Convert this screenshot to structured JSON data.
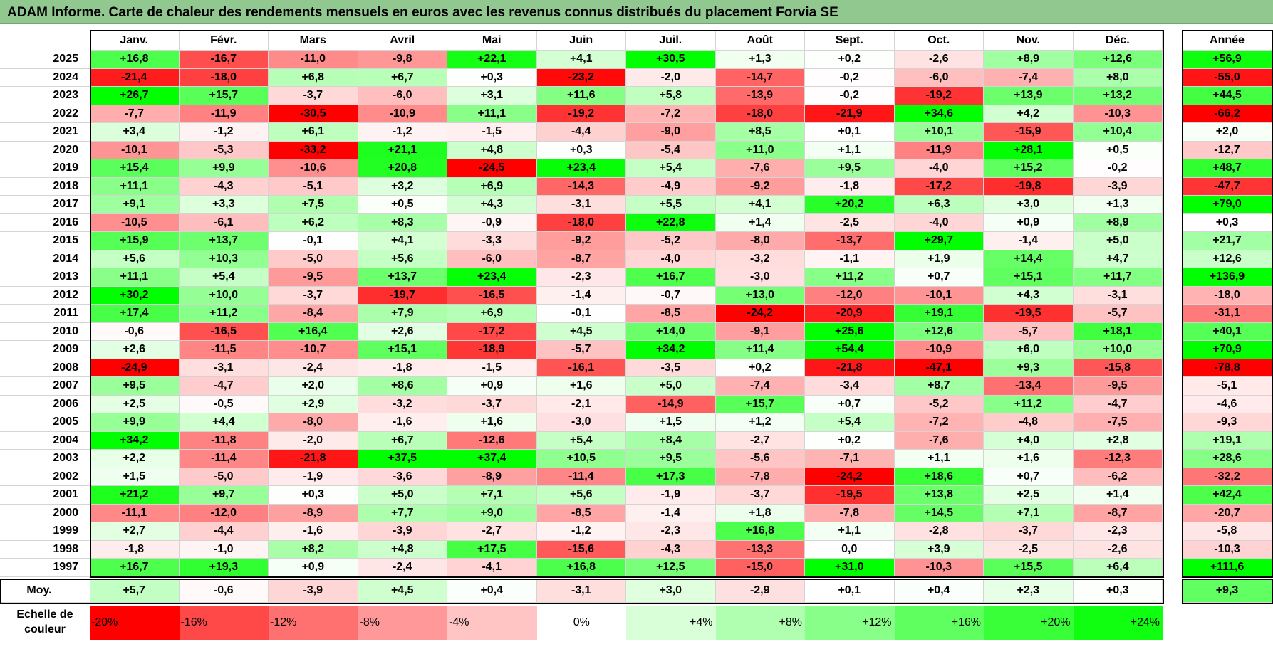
{
  "title": "ADAM Informe. Carte de chaleur des rendements mensuels en euros avec les revenus connus distribués du placement Forvia SE",
  "chart_data": {
    "type": "heatmap",
    "title": "ADAM Informe. Carte de chaleur des rendements mensuels en euros avec les revenus connus distribués du placement Forvia SE",
    "columns": [
      "Janv.",
      "Févr.",
      "Mars",
      "Avril",
      "Mai",
      "Juin",
      "Juil.",
      "Août",
      "Sept.",
      "Oct.",
      "Nov.",
      "Déc."
    ],
    "year_column_label": "Année",
    "rows": [
      {
        "year": "2025",
        "values": [
          "+16,8",
          "-16,7",
          "-11,0",
          "-9,8",
          "+22,1",
          "+4,1",
          "+30,5",
          "+1,3",
          "+0,2",
          "-2,6",
          "+8,9",
          "+12,6"
        ],
        "annual": "+56,9"
      },
      {
        "year": "2024",
        "values": [
          "-21,4",
          "-18,0",
          "+6,8",
          "+6,7",
          "+0,3",
          "-23,2",
          "-2,0",
          "-14,7",
          "-0,2",
          "-6,0",
          "-7,4",
          "+8,0"
        ],
        "annual": "-55,0"
      },
      {
        "year": "2023",
        "values": [
          "+26,7",
          "+15,7",
          "-3,7",
          "-6,0",
          "+3,1",
          "+11,6",
          "+5,8",
          "-13,9",
          "-0,2",
          "-19,2",
          "+13,9",
          "+13,2"
        ],
        "annual": "+44,5"
      },
      {
        "year": "2022",
        "values": [
          "-7,7",
          "-11,9",
          "-30,5",
          "-10,9",
          "+11,1",
          "-19,2",
          "-7,2",
          "-18,0",
          "-21,9",
          "+34,6",
          "+4,2",
          "-10,3"
        ],
        "annual": "-66,2"
      },
      {
        "year": "2021",
        "values": [
          "+3,4",
          "-1,2",
          "+6,1",
          "-1,2",
          "-1,5",
          "-4,4",
          "-9,0",
          "+8,5",
          "+0,1",
          "+10,1",
          "-15,9",
          "+10,4"
        ],
        "annual": "+2,0"
      },
      {
        "year": "2020",
        "values": [
          "-10,1",
          "-5,3",
          "-33,2",
          "+21,1",
          "+4,8",
          "+0,3",
          "-5,4",
          "+11,0",
          "+1,1",
          "-11,9",
          "+28,1",
          "+0,5"
        ],
        "annual": "-12,7"
      },
      {
        "year": "2019",
        "values": [
          "+15,4",
          "+9,9",
          "-10,6",
          "+20,8",
          "-24,5",
          "+23,4",
          "+5,4",
          "-7,6",
          "+9,5",
          "-4,0",
          "+15,2",
          "-0,2"
        ],
        "annual": "+48,7"
      },
      {
        "year": "2018",
        "values": [
          "+11,1",
          "-4,3",
          "-5,1",
          "+3,2",
          "+6,9",
          "-14,3",
          "-4,9",
          "-9,2",
          "-1,8",
          "-17,2",
          "-19,8",
          "-3,9"
        ],
        "annual": "-47,7"
      },
      {
        "year": "2017",
        "values": [
          "+9,1",
          "+3,3",
          "+7,5",
          "+0,5",
          "+4,3",
          "-3,1",
          "+5,5",
          "+4,1",
          "+20,2",
          "+6,3",
          "+3,0",
          "+1,3"
        ],
        "annual": "+79,0"
      },
      {
        "year": "2016",
        "values": [
          "-10,5",
          "-6,1",
          "+6,2",
          "+8,3",
          "-0,9",
          "-18,0",
          "+22,8",
          "+1,4",
          "-2,5",
          "-4,0",
          "+0,9",
          "+8,9"
        ],
        "annual": "+0,3"
      },
      {
        "year": "2015",
        "values": [
          "+15,9",
          "+13,7",
          "-0,1",
          "+4,1",
          "-3,3",
          "-9,2",
          "-5,2",
          "-8,0",
          "-13,7",
          "+29,7",
          "-1,4",
          "+5,0"
        ],
        "annual": "+21,7"
      },
      {
        "year": "2014",
        "values": [
          "+5,6",
          "+10,3",
          "-5,0",
          "+5,6",
          "-6,0",
          "-8,7",
          "-4,0",
          "-3,2",
          "-1,1",
          "+1,9",
          "+14,4",
          "+4,7"
        ],
        "annual": "+12,6"
      },
      {
        "year": "2013",
        "values": [
          "+11,1",
          "+5,4",
          "-9,5",
          "+13,7",
          "+23,4",
          "-2,3",
          "+16,7",
          "-3,0",
          "+11,2",
          "+0,7",
          "+15,1",
          "+11,7"
        ],
        "annual": "+136,9"
      },
      {
        "year": "2012",
        "values": [
          "+30,2",
          "+10,0",
          "-3,7",
          "-19,7",
          "-16,5",
          "-1,4",
          "-0,7",
          "+13,0",
          "-12,0",
          "-10,1",
          "+4,3",
          "-3,1"
        ],
        "annual": "-18,0"
      },
      {
        "year": "2011",
        "values": [
          "+17,4",
          "+11,2",
          "-8,4",
          "+7,9",
          "+6,9",
          "-0,1",
          "-8,5",
          "-24,2",
          "-20,9",
          "+19,1",
          "-19,5",
          "-5,7"
        ],
        "annual": "-31,1"
      },
      {
        "year": "2010",
        "values": [
          "-0,6",
          "-16,5",
          "+16,4",
          "+2,6",
          "-17,2",
          "+4,5",
          "+14,0",
          "-9,1",
          "+25,6",
          "+12,6",
          "-5,7",
          "+18,1"
        ],
        "annual": "+40,1"
      },
      {
        "year": "2009",
        "values": [
          "+2,6",
          "-11,5",
          "-10,7",
          "+15,1",
          "-18,9",
          "-5,7",
          "+34,2",
          "+11,4",
          "+54,4",
          "-10,9",
          "+6,0",
          "+10,0"
        ],
        "annual": "+70,9"
      },
      {
        "year": "2008",
        "values": [
          "-24,9",
          "-3,1",
          "-2,4",
          "-1,8",
          "-1,5",
          "-16,1",
          "-3,5",
          "+0,2",
          "-21,8",
          "-47,1",
          "+9,3",
          "-15,8"
        ],
        "annual": "-78,8"
      },
      {
        "year": "2007",
        "values": [
          "+9,5",
          "-4,7",
          "+2,0",
          "+8,6",
          "+0,9",
          "+1,6",
          "+5,0",
          "-7,4",
          "-3,4",
          "+8,7",
          "-13,4",
          "-9,5"
        ],
        "annual": "-5,1"
      },
      {
        "year": "2006",
        "values": [
          "+2,5",
          "-0,5",
          "+2,9",
          "-3,2",
          "-3,7",
          "-2,1",
          "-14,9",
          "+15,7",
          "+0,7",
          "-5,2",
          "+11,2",
          "-4,7"
        ],
        "annual": "-4,6"
      },
      {
        "year": "2005",
        "values": [
          "+9,9",
          "+4,4",
          "-8,0",
          "-1,6",
          "+1,6",
          "-3,0",
          "+1,5",
          "+1,2",
          "+5,4",
          "-7,2",
          "-4,8",
          "-7,5"
        ],
        "annual": "-9,3"
      },
      {
        "year": "2004",
        "values": [
          "+34,2",
          "-11,8",
          "-2,0",
          "+6,7",
          "-12,6",
          "+5,4",
          "+8,4",
          "-2,7",
          "+0,2",
          "-7,6",
          "+4,0",
          "+2,8"
        ],
        "annual": "+19,1"
      },
      {
        "year": "2003",
        "values": [
          "+2,2",
          "-11,4",
          "-21,8",
          "+37,5",
          "+37,4",
          "+10,5",
          "+9,5",
          "-5,6",
          "-7,1",
          "+1,1",
          "+1,6",
          "-12,3"
        ],
        "annual": "+28,6"
      },
      {
        "year": "2002",
        "values": [
          "+1,5",
          "-5,0",
          "-1,9",
          "-3,6",
          "-8,9",
          "-11,4",
          "+17,3",
          "-7,8",
          "-24,2",
          "+18,6",
          "+0,7",
          "-6,2"
        ],
        "annual": "-32,2"
      },
      {
        "year": "2001",
        "values": [
          "+21,2",
          "+9,7",
          "+0,3",
          "+5,0",
          "+7,1",
          "+5,6",
          "-1,9",
          "-3,7",
          "-19,5",
          "+13,8",
          "+2,5",
          "+1,4"
        ],
        "annual": "+42,4"
      },
      {
        "year": "2000",
        "values": [
          "-11,1",
          "-12,0",
          "-8,9",
          "+7,7",
          "+9,0",
          "-8,5",
          "-1,4",
          "+1,8",
          "-7,8",
          "+14,5",
          "+7,1",
          "-8,7"
        ],
        "annual": "-20,7"
      },
      {
        "year": "1999",
        "values": [
          "+2,7",
          "-4,4",
          "-1,6",
          "-3,9",
          "-2,7",
          "-1,2",
          "-2,3",
          "+16,8",
          "+1,1",
          "-2,8",
          "-3,7",
          "-2,3"
        ],
        "annual": "-5,8"
      },
      {
        "year": "1998",
        "values": [
          "-1,8",
          "-1,0",
          "+8,2",
          "+4,8",
          "+17,5",
          "-15,6",
          "-4,3",
          "-13,3",
          "0,0",
          "+3,9",
          "-2,5",
          "-2,6"
        ],
        "annual": "-10,3"
      },
      {
        "year": "1997",
        "values": [
          "+16,7",
          "+19,3",
          "+0,9",
          "-2,4",
          "-4,1",
          "+16,8",
          "+12,5",
          "-15,0",
          "+31,0",
          "-10,3",
          "+15,5",
          "+6,4"
        ],
        "annual": "+111,6"
      }
    ],
    "average": {
      "label": "Moy.",
      "values": [
        "+5,7",
        "-0,6",
        "-3,9",
        "+4,5",
        "+0,4",
        "-3,1",
        "+3,0",
        "-2,9",
        "+0,1",
        "+0,4",
        "+2,3",
        "+0,3"
      ],
      "annual": "+9,3"
    },
    "color_scale": {
      "label_line1": "Echelle de",
      "label_line2": "couleur",
      "stops": [
        "-20%",
        "-16%",
        "-12%",
        "-8%",
        "-4%",
        "0%",
        "+4%",
        "+8%",
        "+12%",
        "+16%",
        "+20%",
        "+24%"
      ],
      "stop_colors": [
        "#ff0000",
        "#ff4848",
        "#ff7070",
        "#ff9898",
        "#ffc4c4",
        "#ffffff",
        "#d8ffd8",
        "#b0ffb0",
        "#88ff88",
        "#60ff60",
        "#38ff38",
        "#10ff10"
      ],
      "stop_values": [
        -20,
        -16,
        -12,
        -8,
        -4,
        0,
        4,
        8,
        12,
        16,
        20,
        24
      ]
    }
  }
}
